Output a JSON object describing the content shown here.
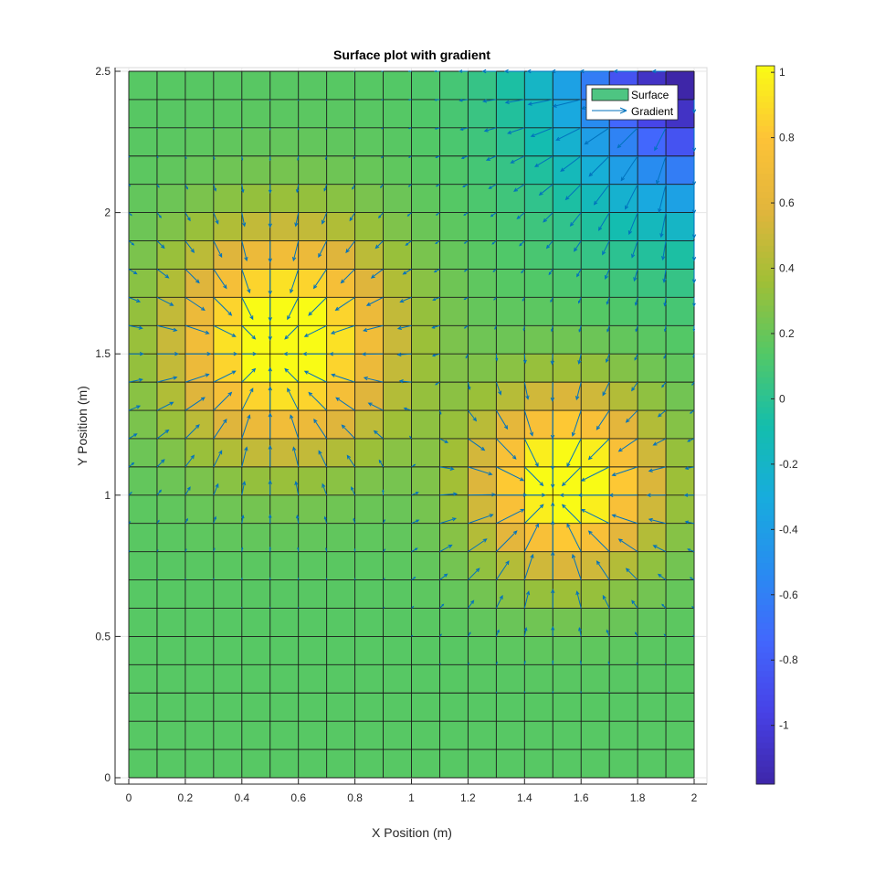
{
  "chart_data": {
    "type": "heatmap",
    "title": "Surface plot with gradient",
    "xlabel": "X Position (m)",
    "ylabel": "Y Position (m)",
    "xlim": [
      0,
      2
    ],
    "ylim": [
      0,
      2.5
    ],
    "xticks": [
      "0",
      "0.2",
      "0.4",
      "0.6",
      "0.8",
      "1",
      "1.2",
      "1.4",
      "1.6",
      "1.8",
      "2"
    ],
    "yticks": [
      "0",
      "0.5",
      "1",
      "1.5",
      "2",
      "2.5"
    ],
    "x": [
      0,
      0.1,
      0.2,
      0.3,
      0.4,
      0.5,
      0.6,
      0.7,
      0.8,
      0.9,
      1.0,
      1.1,
      1.2,
      1.3,
      1.4,
      1.5,
      1.6,
      1.7,
      1.8,
      1.9,
      2.0
    ],
    "y": [
      0,
      0.1,
      0.2,
      0.3,
      0.4,
      0.5,
      0.6,
      0.7,
      0.8,
      0.9,
      1.0,
      1.1,
      1.2,
      1.3,
      1.4,
      1.5,
      1.6,
      1.7,
      1.8,
      1.9,
      2.0,
      2.1,
      2.2,
      2.3,
      2.4,
      2.5
    ],
    "surface_function": "exp(-((x-0.5)^2+(y-1.5)^2)/0.15) + exp(-((x-1.5)^2+(y-1)^2)/0.1) - 1.5*exp(-((x-2)^2+(y-2.5)^2)/0.25) + 0.15",
    "colorbar": {
      "colormap": "parula",
      "clim": [
        -1.18,
        1.02
      ],
      "ticks": [
        "-1",
        "-0.8",
        "-0.6",
        "-0.4",
        "-0.2",
        "0",
        "0.2",
        "0.4",
        "0.6",
        "0.8",
        "1"
      ]
    },
    "legend": {
      "position": "top-right",
      "entries": [
        "Surface",
        "Gradient"
      ]
    },
    "series": [
      {
        "name": "Surface",
        "kind": "surface"
      },
      {
        "name": "Gradient",
        "kind": "quiver",
        "color": "#0072bd"
      }
    ],
    "grid": true
  }
}
